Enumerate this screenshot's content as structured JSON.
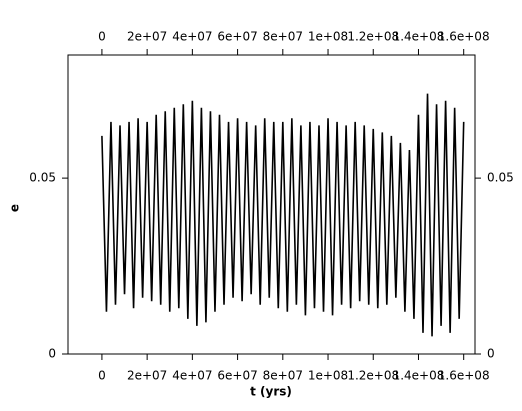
{
  "chart_data": {
    "type": "line",
    "xlabel": "t (yrs)",
    "ylabel": "e",
    "xlim": [
      -15000000.0,
      165000000.0
    ],
    "ylim": [
      0,
      0.085
    ],
    "xticks": [
      {
        "value": 0,
        "label": "0"
      },
      {
        "value": 20000000.0,
        "label": "2e+07"
      },
      {
        "value": 40000000.0,
        "label": "4e+07"
      },
      {
        "value": 60000000.0,
        "label": "6e+07"
      },
      {
        "value": 80000000.0,
        "label": "8e+07"
      },
      {
        "value": 100000000.0,
        "label": "1e+08"
      },
      {
        "value": 120000000.0,
        "label": "1.2e+08"
      },
      {
        "value": 140000000.0,
        "label": "1.4e+08"
      },
      {
        "value": 160000000.0,
        "label": "1.6e+08"
      }
    ],
    "yticks": [
      0,
      0.05
    ],
    "x": [
      0,
      2000000.0,
      4000000.0,
      6000000.0,
      8000000.0,
      10000000.0,
      12000000.0,
      14000000.0,
      16000000.0,
      18000000.0,
      20000000.0,
      22000000.0,
      24000000.0,
      26000000.0,
      28000000.0,
      30000000.0,
      32000000.0,
      34000000.0,
      36000000.0,
      38000000.0,
      40000000.0,
      42000000.0,
      44000000.0,
      46000000.0,
      48000000.0,
      50000000.0,
      52000000.0,
      54000000.0,
      56000000.0,
      58000000.0,
      60000000.0,
      62000000.0,
      64000000.0,
      66000000.0,
      68000000.0,
      70000000.0,
      72000000.0,
      74000000.0,
      76000000.0,
      78000000.0,
      80000000.0,
      82000000.0,
      84000000.0,
      86000000.0,
      88000000.0,
      90000000.0,
      92000000.0,
      94000000.0,
      96000000.0,
      98000000.0,
      100000000.0,
      102000000.0,
      104000000.0,
      106000000.0,
      108000000.0,
      110000000.0,
      112000000.0,
      114000000.0,
      116000000.0,
      118000000.0,
      120000000.0,
      122000000.0,
      124000000.0,
      126000000.0,
      128000000.0,
      130000000.0,
      132000000.0,
      134000000.0,
      136000000.0,
      138000000.0,
      140000000.0,
      142000000.0,
      144000000.0,
      146000000.0,
      148000000.0,
      150000000.0,
      152000000.0,
      154000000.0,
      156000000.0,
      158000000.0,
      160000000.0
    ],
    "series": [
      {
        "color": "#000000",
        "values": [
          0.062,
          0.012,
          0.066,
          0.014,
          0.065,
          0.017,
          0.066,
          0.013,
          0.067,
          0.016,
          0.066,
          0.015,
          0.068,
          0.014,
          0.069,
          0.012,
          0.07,
          0.013,
          0.071,
          0.01,
          0.072,
          0.008,
          0.07,
          0.009,
          0.069,
          0.012,
          0.068,
          0.014,
          0.066,
          0.016,
          0.067,
          0.015,
          0.066,
          0.017,
          0.065,
          0.014,
          0.067,
          0.016,
          0.066,
          0.013,
          0.066,
          0.012,
          0.067,
          0.014,
          0.065,
          0.011,
          0.066,
          0.013,
          0.065,
          0.012,
          0.067,
          0.011,
          0.066,
          0.014,
          0.065,
          0.013,
          0.066,
          0.015,
          0.065,
          0.014,
          0.064,
          0.013,
          0.063,
          0.014,
          0.062,
          0.016,
          0.06,
          0.012,
          0.058,
          0.01,
          0.068,
          0.006,
          0.074,
          0.005,
          0.071,
          0.008,
          0.072,
          0.006,
          0.07,
          0.01,
          0.066
        ]
      }
    ]
  }
}
